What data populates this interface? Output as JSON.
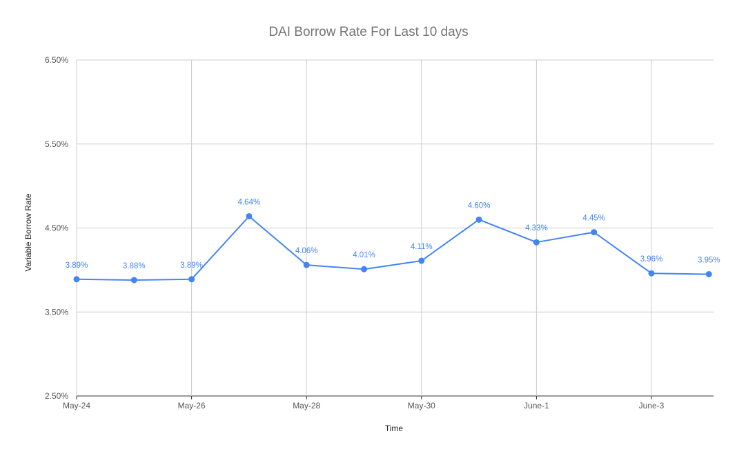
{
  "chart_data": {
    "type": "line",
    "title": "DAI Borrow Rate For Last 10 days",
    "xlabel": "Time",
    "ylabel": "Variable Borrow Rate",
    "x_tick_labels": [
      "May-24",
      "May-26",
      "May-28",
      "May-30",
      "June-1",
      "June-3"
    ],
    "y_tick_labels": [
      "2.50%",
      "3.50%",
      "4.50%",
      "5.50%",
      "6.50%"
    ],
    "ylim": [
      2.5,
      6.5
    ],
    "y_ticks": [
      2.5,
      3.5,
      4.5,
      5.5,
      6.5
    ],
    "grid": true,
    "legend": "none",
    "color": "#4285f4",
    "series": [
      {
        "x": [
          "May-24",
          "May-25",
          "May-26",
          "May-27",
          "May-28",
          "May-29",
          "May-30",
          "May-31",
          "June-1",
          "June-2",
          "June-3",
          "June-4"
        ],
        "values": [
          3.89,
          3.88,
          3.89,
          4.64,
          4.06,
          4.01,
          4.11,
          4.6,
          4.33,
          4.45,
          3.96,
          3.95
        ],
        "labels": [
          "3.89%",
          "3.88%",
          "3.89%",
          "4.64%",
          "4.06%",
          "4.01%",
          "4.11%",
          "4.60%",
          "4.33%",
          "4.45%",
          "3.96%",
          "3.95%"
        ]
      }
    ]
  }
}
